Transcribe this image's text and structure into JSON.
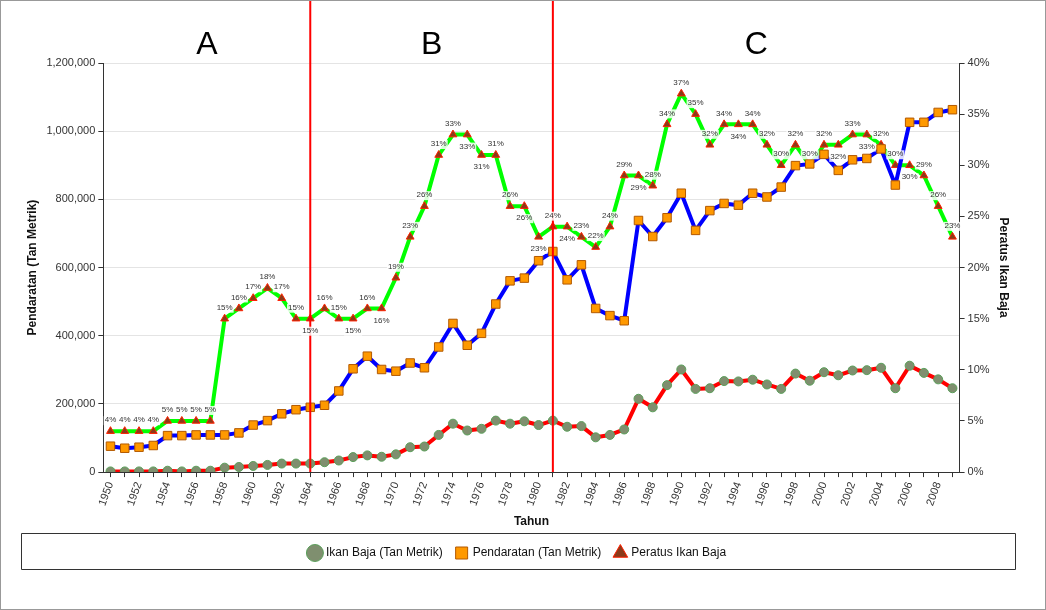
{
  "chart_data": {
    "type": "line",
    "xlabel": "Tahun",
    "ylabel": "Pendaratan (Tan Metrik)",
    "y2label": "Peratus Ikan Baja",
    "x": [
      1950,
      1951,
      1952,
      1953,
      1954,
      1955,
      1956,
      1957,
      1958,
      1959,
      1960,
      1961,
      1962,
      1963,
      1964,
      1965,
      1966,
      1967,
      1968,
      1969,
      1970,
      1971,
      1972,
      1973,
      1974,
      1975,
      1976,
      1977,
      1978,
      1979,
      1980,
      1981,
      1982,
      1983,
      1984,
      1985,
      1986,
      1987,
      1988,
      1989,
      1990,
      1991,
      1992,
      1993,
      1994,
      1995,
      1996,
      1997,
      1998,
      1999,
      2000,
      2001,
      2002,
      2003,
      2004,
      2005,
      2006,
      2007,
      2008,
      2009
    ],
    "xlim": [
      1949.5,
      2009.5
    ],
    "xticks": [
      1950,
      {
        "value": 1951,
        "label": null
      },
      1952,
      {
        "value": 1953,
        "label": null
      },
      1954,
      {
        "value": 1955,
        "label": null
      },
      1956,
      {
        "value": 1957,
        "label": null
      },
      1958,
      {
        "value": 1959,
        "label": null
      },
      1960,
      {
        "value": 1961,
        "label": null
      },
      1962,
      {
        "value": 1963,
        "label": null
      },
      1964,
      {
        "value": 1965,
        "label": null
      },
      1966,
      {
        "value": 1967,
        "label": null
      },
      1968,
      {
        "value": 1969,
        "label": null
      },
      1970,
      {
        "value": 1971,
        "label": null
      },
      1972,
      {
        "value": 1973,
        "label": null
      },
      1974,
      {
        "value": 1975,
        "label": null
      },
      1976,
      {
        "value": 1977,
        "label": null
      },
      1978,
      {
        "value": 1979,
        "label": null
      },
      1980,
      {
        "value": 1981,
        "label": null
      },
      1982,
      {
        "value": 1983,
        "label": null
      },
      1984,
      {
        "value": 1985,
        "label": null
      },
      1986,
      {
        "value": 1987,
        "label": null
      },
      1988,
      {
        "value": 1989,
        "label": null
      },
      1990,
      {
        "value": 1991,
        "label": null
      },
      1992,
      {
        "value": 1993,
        "label": null
      },
      1994,
      {
        "value": 1995,
        "label": null
      },
      1996,
      {
        "value": 1997,
        "label": null
      },
      1998,
      {
        "value": 1999,
        "label": null
      },
      2000,
      {
        "value": 2001,
        "label": null
      },
      2002,
      {
        "value": 2003,
        "label": null
      },
      2004,
      {
        "value": 2005,
        "label": null
      },
      2006,
      {
        "value": 2007,
        "label": null
      },
      2008,
      {
        "value": 2009,
        "label": null
      }
    ],
    "ylim": [
      0,
      1200000
    ],
    "yticks": [
      0,
      {
        "value": 200000,
        "label": "200,000"
      },
      {
        "value": 400000,
        "label": "400,000"
      },
      {
        "value": 600000,
        "label": "600,000"
      },
      {
        "value": 800000,
        "label": "800,000"
      },
      {
        "value": 1000000,
        "label": "1,000,000"
      },
      {
        "value": 1200000,
        "label": "1,200,000"
      }
    ],
    "y2lim": [
      0,
      40
    ],
    "y2ticks": [
      {
        "value": 0,
        "label": "0%"
      },
      {
        "value": 5,
        "label": "5%"
      },
      {
        "value": 10,
        "label": "10%"
      },
      {
        "value": 15,
        "label": "15%"
      },
      {
        "value": 20,
        "label": "20%"
      },
      {
        "value": 25,
        "label": "25%"
      },
      {
        "value": 30,
        "label": "30%"
      },
      {
        "value": 35,
        "label": "35%"
      },
      {
        "value": 40,
        "label": "40%"
      }
    ],
    "grid": "y",
    "legend": "bottom",
    "line_style": "solid",
    "ref_lines": [
      {
        "axis": "x",
        "value": 1964,
        "color": "#ff0000"
      },
      {
        "axis": "x",
        "value": 1981,
        "color": "#ff0000"
      }
    ],
    "annotations": [
      "A",
      "B",
      "C"
    ],
    "series": [
      {
        "name": "Ikan Baja (Tan Metrik)",
        "color": "#ff0000",
        "marker": "circle",
        "values": [
          2000,
          2000,
          2000,
          2000,
          4000,
          2000,
          4000,
          4000,
          13000,
          15000,
          18000,
          21000,
          25000,
          25000,
          25000,
          29000,
          34000,
          44000,
          49000,
          45000,
          52000,
          73000,
          75000,
          109000,
          142000,
          122000,
          127000,
          151000,
          142000,
          149000,
          138000,
          151000,
          133000,
          135000,
          102000,
          109000,
          125000,
          215000,
          190000,
          255000,
          301000,
          244000,
          246000,
          267000,
          266000,
          271000,
          257000,
          244000,
          289000,
          268000,
          293000,
          284000,
          298000,
          299000,
          306000,
          246000,
          312000,
          291000,
          272000,
          246000
        ]
      },
      {
        "name": "Pendaratan (Tan Metrik)",
        "color": "#0000ff",
        "marker": "square",
        "values": [
          76000,
          70000,
          73000,
          78000,
          107000,
          107000,
          109000,
          109000,
          109000,
          115000,
          138000,
          151000,
          171000,
          183000,
          190000,
          196000,
          238000,
          303000,
          340000,
          301000,
          296000,
          320000,
          306000,
          367000,
          436000,
          372000,
          407000,
          493000,
          561000,
          569000,
          620000,
          647000,
          564000,
          608000,
          480000,
          459000,
          444000,
          738000,
          691000,
          746000,
          818000,
          709000,
          767000,
          788000,
          783000,
          818000,
          807000,
          836000,
          899000,
          904000,
          932000,
          885000,
          916000,
          920000,
          948000,
          842000,
          1026000,
          1026000,
          1055000,
          1063000
        ]
      },
      {
        "name": "Peratus Ikan Baja",
        "color": "#00ff00",
        "marker": "triangle",
        "axis": "y2",
        "values": [
          4,
          4,
          4,
          4,
          5,
          5,
          5,
          5,
          15,
          16,
          17,
          18,
          17,
          15,
          15,
          16,
          15,
          15,
          16,
          16,
          19,
          23,
          26,
          31,
          33,
          33,
          31,
          31,
          26,
          26,
          23,
          24,
          24,
          23,
          22,
          24,
          29,
          29,
          28,
          34,
          37,
          35,
          32,
          34,
          34,
          34,
          32,
          30,
          32,
          30,
          32,
          32,
          33,
          33,
          32,
          30,
          30,
          29,
          26,
          23
        ],
        "value_labels": [
          "4%",
          "4%",
          "4%",
          "4%",
          "5%",
          "5%",
          "5%",
          "5%",
          "15%",
          "16%",
          "17%",
          "18%",
          "17%",
          "15%",
          "15%",
          "16%",
          "15%",
          "15%",
          "16%",
          "16%",
          "19%",
          "23%",
          "26%",
          "31%",
          "33%",
          "33%",
          "31%",
          "31%",
          "26%",
          "26%",
          "23%",
          "24%",
          "24%",
          "23%",
          "22%",
          "24%",
          "29%",
          "29%",
          "28%",
          "34%",
          "37%",
          "35%",
          "32%",
          "34%",
          "34%",
          "34%",
          "32%",
          "30%",
          "32%",
          "30%",
          "32%",
          "32%",
          "33%",
          "33%",
          "32%",
          "30%",
          "30%",
          "29%",
          "26%",
          "23%"
        ]
      }
    ]
  }
}
